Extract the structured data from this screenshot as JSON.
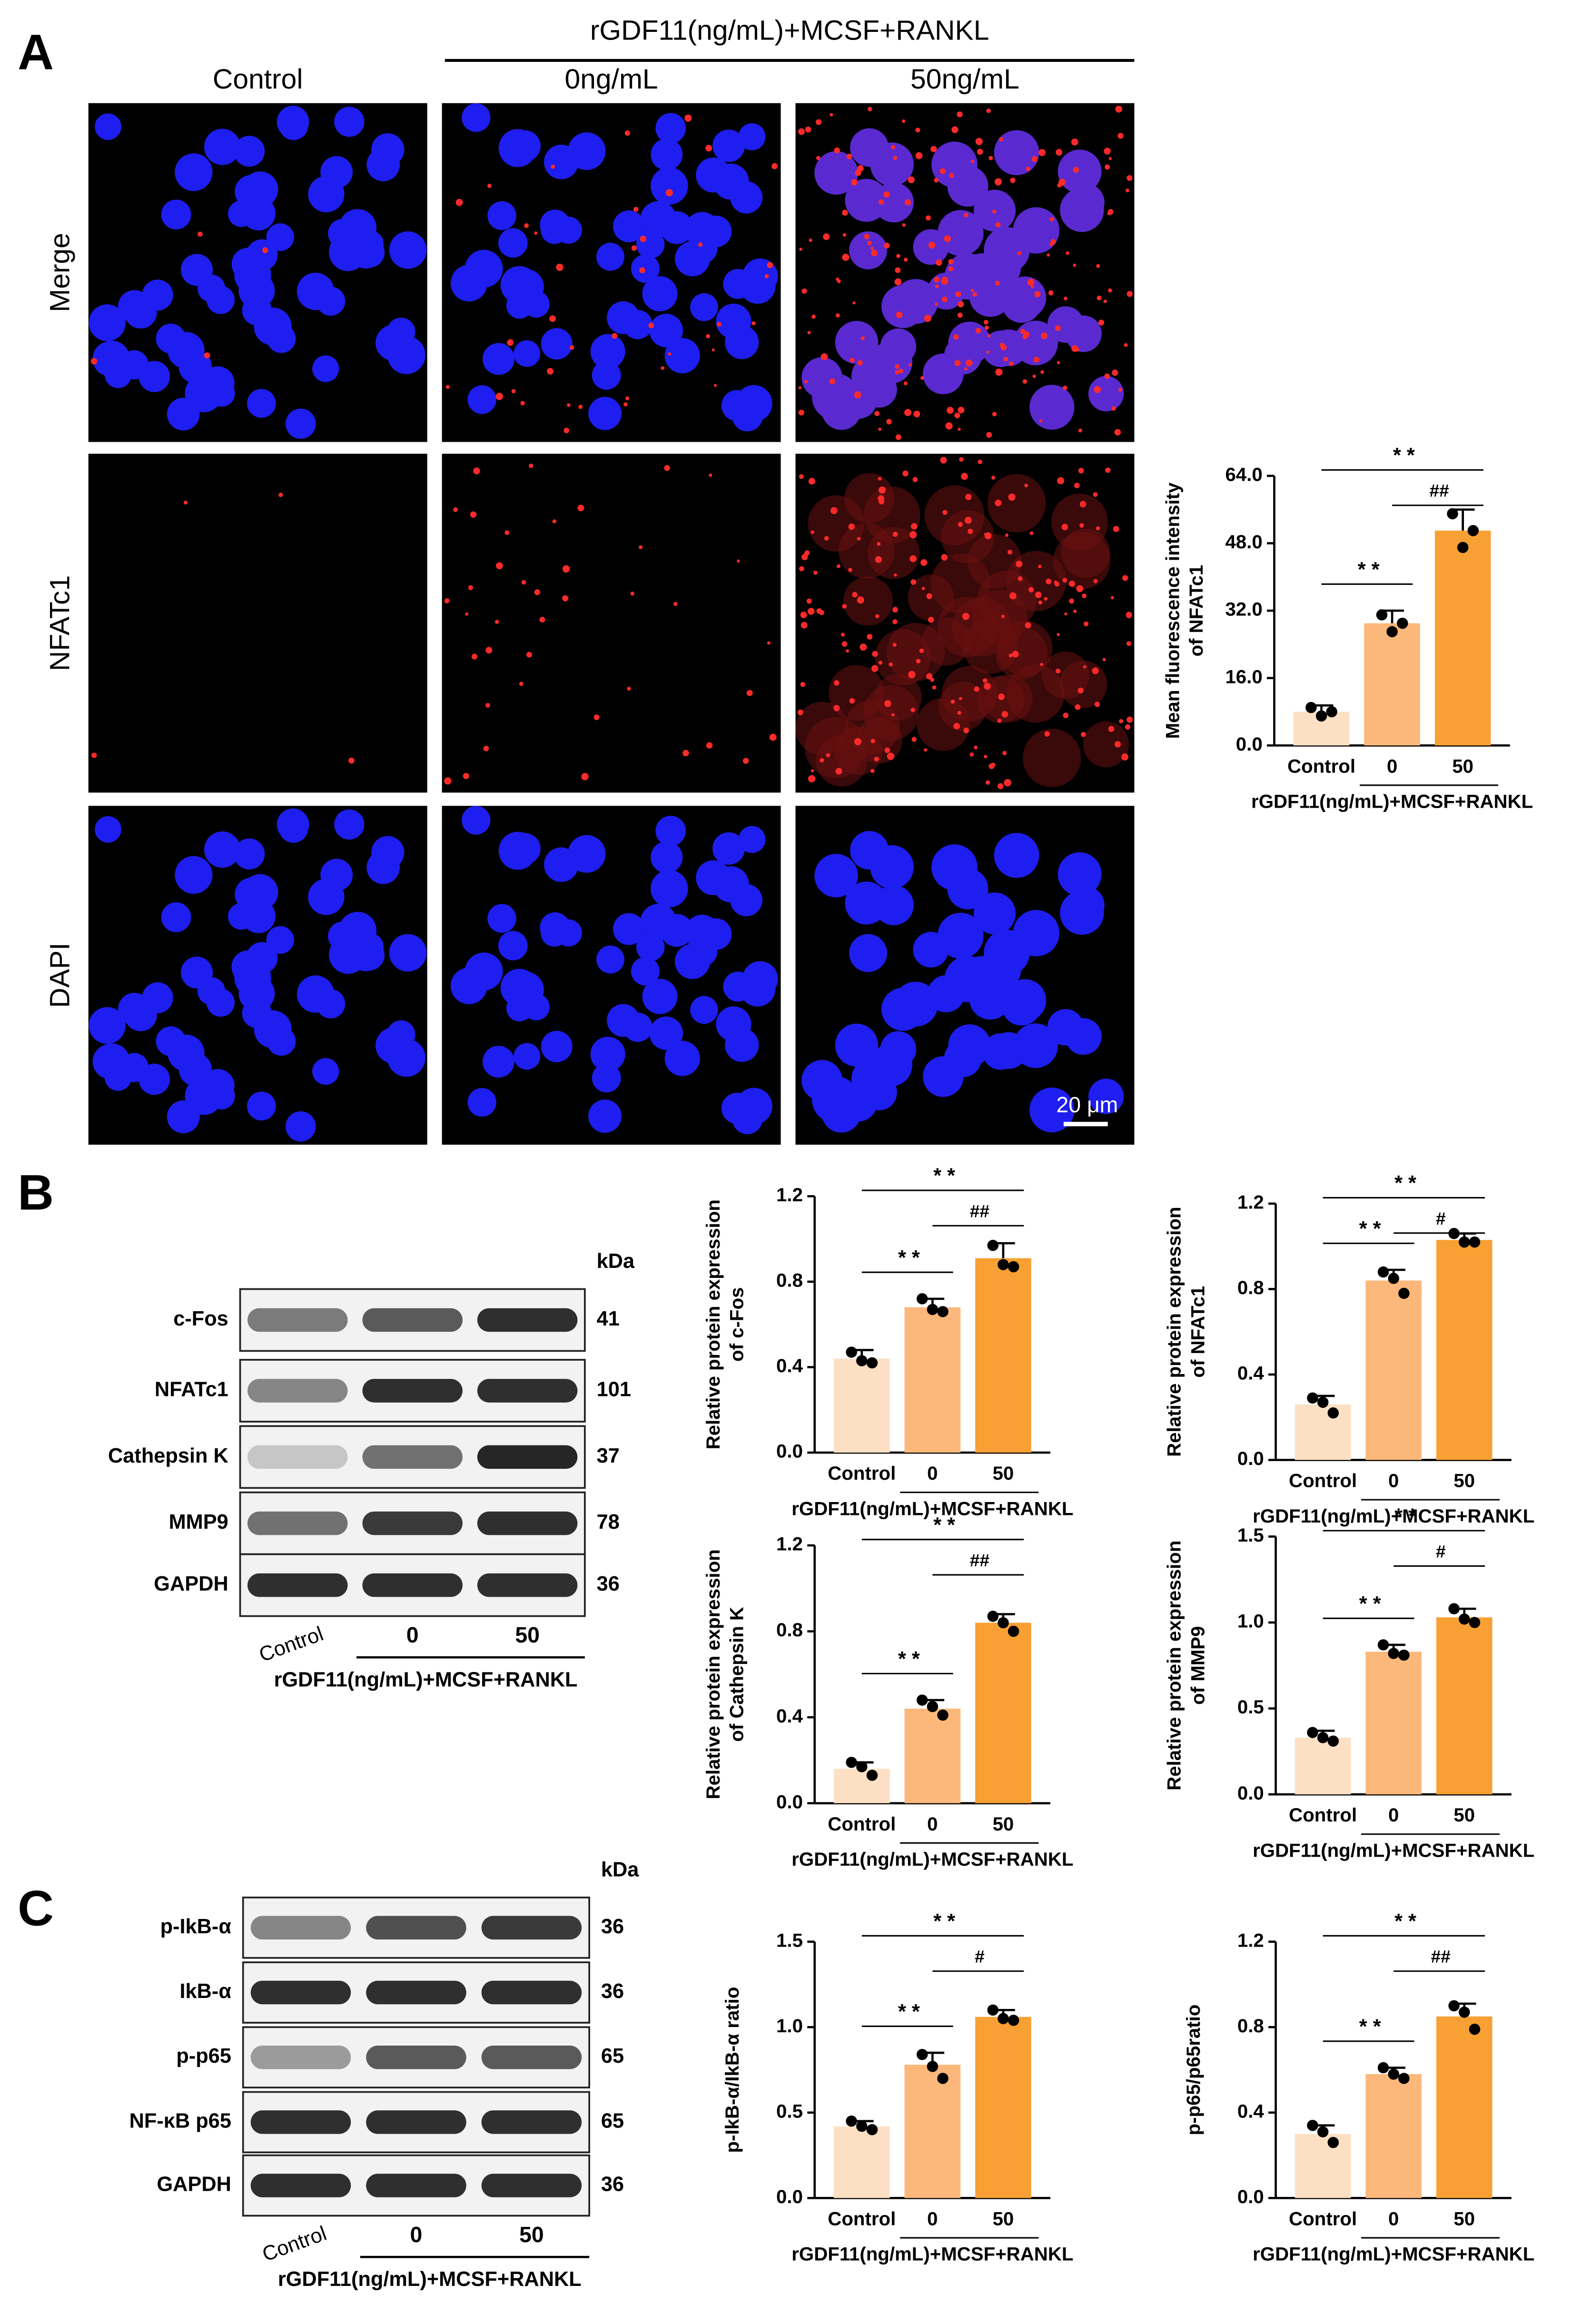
{
  "panel_labels": [
    "A",
    "B",
    "C"
  ],
  "micrographs": {
    "group_label": "rGDF11(ng/mL)+MCSF+RANKL",
    "columns": [
      "Control",
      "0ng/mL",
      "50ng/mL"
    ],
    "rows": [
      "Merge",
      "NFATc1",
      "DAPI"
    ],
    "scale_bar": "20 μm"
  },
  "blots": [
    {
      "kda_label": "kDa",
      "rows": [
        {
          "label": "c-Fos",
          "kda": 41
        },
        {
          "label": "NFATc1",
          "kda": 101
        },
        {
          "label": "Cathepsin K",
          "kda": 37
        },
        {
          "label": "MMP9",
          "kda": 78
        },
        {
          "label": "GAPDH",
          "kda": 36
        }
      ],
      "lanes": [
        "Control",
        "0",
        "50"
      ],
      "group_label": "rGDF11(ng/mL)+MCSF+RANKL"
    },
    {
      "kda_label": "kDa",
      "rows": [
        {
          "label": "p-IkB-α",
          "kda": 36
        },
        {
          "label": "IkB-α",
          "kda": 36
        },
        {
          "label": "p-p65",
          "kda": 65
        },
        {
          "label": "NF-κB p65",
          "kda": 65
        },
        {
          "label": "GAPDH",
          "kda": 36
        }
      ],
      "lanes": [
        "Control",
        "0",
        "50"
      ],
      "group_label": "rGDF11(ng/mL)+MCSF+RANKL"
    }
  ],
  "chart_data": [
    {
      "type": "bar",
      "y_label": [
        "Mean fluorescence intensity",
        "of NFATc1"
      ],
      "x_group_label": "rGDF11(ng/mL)+MCSF+RANKL",
      "categories": [
        "Control",
        "0",
        "50"
      ],
      "values": [
        8,
        29,
        51
      ],
      "errors": [
        1.5,
        3,
        5
      ],
      "points": [
        [
          9,
          7,
          8
        ],
        [
          31,
          27,
          29
        ],
        [
          55,
          47,
          51
        ]
      ],
      "colors": [
        "#fde0c4",
        "#fbb87a",
        "#f8a033"
      ],
      "ylim": [
        0,
        64
      ],
      "yticks": [
        {
          "value": 0,
          "label": "0.0"
        },
        {
          "value": 16,
          "label": "16.0"
        },
        {
          "value": 32,
          "label": "32.0"
        },
        {
          "value": 48,
          "label": "48.0"
        },
        {
          "value": 64,
          "label": "64.0"
        }
      ],
      "annotations": [
        {
          "between": [
            "Control",
            "50"
          ],
          "label": "* *"
        },
        {
          "between": [
            "0",
            "50"
          ],
          "label": "##"
        },
        {
          "between": [
            "Control",
            "0"
          ],
          "label": "* *"
        }
      ]
    },
    {
      "type": "bar",
      "y_label": [
        "Relative protein expression",
        "of c-Fos"
      ],
      "x_group_label": "rGDF11(ng/mL)+MCSF+RANKL",
      "categories": [
        "Control",
        "0",
        "50"
      ],
      "values": [
        0.44,
        0.68,
        0.91
      ],
      "errors": [
        0.04,
        0.04,
        0.07
      ],
      "points": [
        [
          0.47,
          0.43,
          0.42
        ],
        [
          0.72,
          0.67,
          0.66
        ],
        [
          0.97,
          0.88,
          0.87
        ]
      ],
      "colors": [
        "#fde0c4",
        "#fbb87a",
        "#f8a033"
      ],
      "ylim": [
        0,
        1.2
      ],
      "yticks": [
        {
          "value": 0,
          "label": "0.0"
        },
        0.4,
        0.8,
        1.2
      ],
      "annotations": [
        {
          "between": [
            "Control",
            "50"
          ],
          "label": "* *"
        },
        {
          "between": [
            "0",
            "50"
          ],
          "label": "##"
        },
        {
          "between": [
            "Control",
            "0"
          ],
          "label": "* *"
        }
      ]
    },
    {
      "type": "bar",
      "y_label": [
        "Relative protein expression",
        "of NFATc1"
      ],
      "x_group_label": "rGDF11(ng/mL)+MCSF+RANKL",
      "categories": [
        "Control",
        "0",
        "50"
      ],
      "values": [
        0.26,
        0.84,
        1.03
      ],
      "errors": [
        0.04,
        0.05,
        0.03
      ],
      "points": [
        [
          0.29,
          0.27,
          0.22
        ],
        [
          0.88,
          0.85,
          0.78
        ],
        [
          1.06,
          1.02,
          1.02
        ]
      ],
      "colors": [
        "#fde0c4",
        "#fbb87a",
        "#f8a033"
      ],
      "ylim": [
        0,
        1.2
      ],
      "yticks": [
        {
          "value": 0,
          "label": "0.0"
        },
        0.4,
        0.8,
        1.2
      ],
      "annotations": [
        {
          "between": [
            "Control",
            "50"
          ],
          "label": "* *"
        },
        {
          "between": [
            "0",
            "50"
          ],
          "label": "#"
        },
        {
          "between": [
            "Control",
            "0"
          ],
          "label": "* *"
        }
      ]
    },
    {
      "type": "bar",
      "y_label": [
        "Relative protein expression",
        "of Cathepsin K"
      ],
      "x_group_label": "rGDF11(ng/mL)+MCSF+RANKL",
      "categories": [
        "Control",
        "0",
        "50"
      ],
      "values": [
        0.16,
        0.44,
        0.84
      ],
      "errors": [
        0.03,
        0.04,
        0.04
      ],
      "points": [
        [
          0.19,
          0.17,
          0.13
        ],
        [
          0.48,
          0.45,
          0.41
        ],
        [
          0.87,
          0.84,
          0.8
        ]
      ],
      "colors": [
        "#fde0c4",
        "#fbb87a",
        "#f8a033"
      ],
      "ylim": [
        0,
        1.2
      ],
      "yticks": [
        {
          "value": 0,
          "label": "0.0"
        },
        0.4,
        0.8,
        1.2
      ],
      "annotations": [
        {
          "between": [
            "Control",
            "50"
          ],
          "label": "* *"
        },
        {
          "between": [
            "0",
            "50"
          ],
          "label": "##"
        },
        {
          "between": [
            "Control",
            "0"
          ],
          "label": "* *"
        }
      ]
    },
    {
      "type": "bar",
      "y_label": [
        "Relative protein expression",
        "of MMP9"
      ],
      "x_group_label": "rGDF11(ng/mL)+MCSF+RANKL",
      "categories": [
        "Control",
        "0",
        "50"
      ],
      "values": [
        0.33,
        0.83,
        1.03
      ],
      "errors": [
        0.04,
        0.04,
        0.05
      ],
      "points": [
        [
          0.36,
          0.33,
          0.31
        ],
        [
          0.87,
          0.82,
          0.81
        ],
        [
          1.08,
          1.02,
          1.0
        ]
      ],
      "colors": [
        "#fde0c4",
        "#fbb87a",
        "#f8a033"
      ],
      "ylim": [
        0,
        1.5
      ],
      "yticks": [
        {
          "value": 0,
          "label": "0.0"
        },
        0.5,
        {
          "value": 1,
          "label": "1.0"
        },
        1.5
      ],
      "annotations": [
        {
          "between": [
            "Control",
            "50"
          ],
          "label": "* *"
        },
        {
          "between": [
            "0",
            "50"
          ],
          "label": "#"
        },
        {
          "between": [
            "Control",
            "0"
          ],
          "label": "* *"
        }
      ]
    },
    {
      "type": "bar",
      "y_label": [
        "p-IkB-α/IkB-α ratio"
      ],
      "x_group_label": "rGDF11(ng/mL)+MCSF+RANKL",
      "categories": [
        "Control",
        "0",
        "50"
      ],
      "values": [
        0.42,
        0.78,
        1.06
      ],
      "errors": [
        0.03,
        0.07,
        0.04
      ],
      "points": [
        [
          0.45,
          0.42,
          0.4
        ],
        [
          0.84,
          0.77,
          0.7
        ],
        [
          1.1,
          1.05,
          1.04
        ]
      ],
      "colors": [
        "#fde0c4",
        "#fbb87a",
        "#f8a033"
      ],
      "ylim": [
        0,
        1.5
      ],
      "yticks": [
        {
          "value": 0,
          "label": "0.0"
        },
        0.5,
        {
          "value": 1,
          "label": "1.0"
        },
        1.5
      ],
      "annotations": [
        {
          "between": [
            "Control",
            "50"
          ],
          "label": "* *"
        },
        {
          "between": [
            "0",
            "50"
          ],
          "label": "#"
        },
        {
          "between": [
            "Control",
            "0"
          ],
          "label": "* *"
        }
      ]
    },
    {
      "type": "bar",
      "y_label": [
        "p-p65/p65ratio"
      ],
      "x_group_label": "rGDF11(ng/mL)+MCSF+RANKL",
      "categories": [
        "Control",
        "0",
        "50"
      ],
      "values": [
        0.3,
        0.58,
        0.85
      ],
      "errors": [
        0.04,
        0.03,
        0.06
      ],
      "points": [
        [
          0.34,
          0.31,
          0.26
        ],
        [
          0.61,
          0.58,
          0.56
        ],
        [
          0.9,
          0.87,
          0.79
        ]
      ],
      "colors": [
        "#fde0c4",
        "#fbb87a",
        "#f8a033"
      ],
      "ylim": [
        0,
        1.2
      ],
      "yticks": [
        {
          "value": 0,
          "label": "0.0"
        },
        0.4,
        0.8,
        1.2
      ],
      "annotations": [
        {
          "between": [
            "Control",
            "50"
          ],
          "label": "* *"
        },
        {
          "between": [
            "0",
            "50"
          ],
          "label": "##"
        },
        {
          "between": [
            "Control",
            "0"
          ],
          "label": "* *"
        }
      ]
    }
  ]
}
